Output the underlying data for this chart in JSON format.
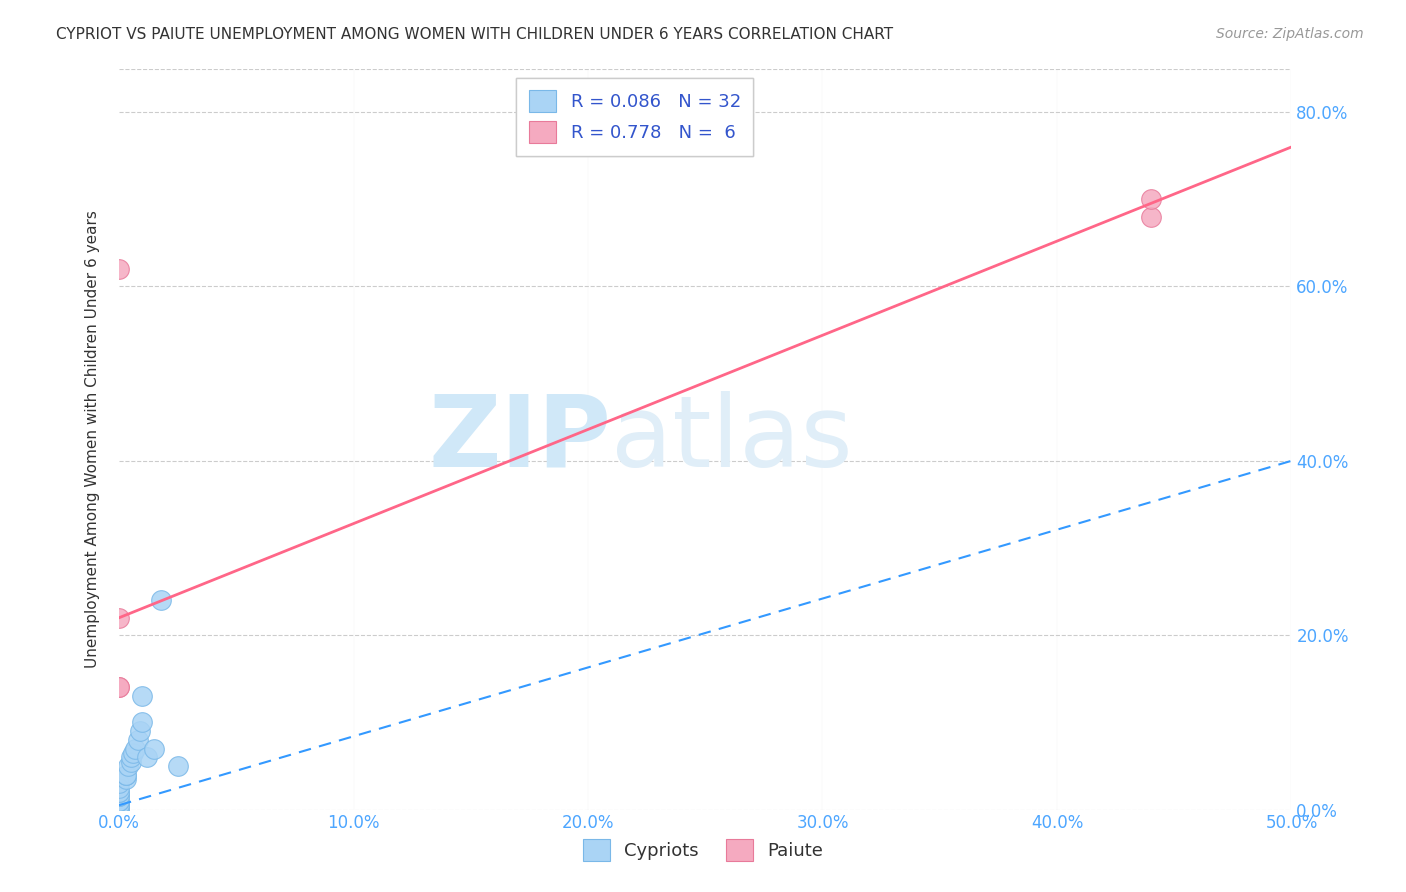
{
  "title": "CYPRIOT VS PAIUTE UNEMPLOYMENT AMONG WOMEN WITH CHILDREN UNDER 6 YEARS CORRELATION CHART",
  "source": "Source: ZipAtlas.com",
  "tick_color": "#4da6ff",
  "ylabel": "Unemployment Among Women with Children Under 6 years",
  "xlim": [
    0.0,
    0.5
  ],
  "ylim": [
    0.0,
    0.85
  ],
  "xticks": [
    0.0,
    0.1,
    0.2,
    0.3,
    0.4,
    0.5
  ],
  "yticks": [
    0.0,
    0.2,
    0.4,
    0.6,
    0.8
  ],
  "ytick_labels_right": [
    "0.0%",
    "20.0%",
    "40.0%",
    "60.0%",
    "80.0%"
  ],
  "xtick_labels": [
    "0.0%",
    "10.0%",
    "20.0%",
    "30.0%",
    "40.0%",
    "50.0%"
  ],
  "cypriot_color": "#aad4f5",
  "cypriot_edge": "#7ab8e8",
  "paiute_color": "#f5aac0",
  "paiute_edge": "#e87a9a",
  "cypriot_R": 0.086,
  "cypriot_N": 32,
  "paiute_R": 0.778,
  "paiute_N": 6,
  "cypriot_line_color": "#3399ff",
  "paiute_line_color": "#ff6688",
  "watermark_zip": "ZIP",
  "watermark_atlas": "atlas",
  "watermark_color": "#d0e8f8",
  "legend_color": "#3355cc",
  "cypriot_points_x": [
    0.0,
    0.0,
    0.0,
    0.0,
    0.0,
    0.0,
    0.0,
    0.0,
    0.0,
    0.0,
    0.0,
    0.0,
    0.0,
    0.0,
    0.0,
    0.0,
    0.003,
    0.003,
    0.003,
    0.004,
    0.005,
    0.005,
    0.006,
    0.007,
    0.008,
    0.009,
    0.01,
    0.01,
    0.012,
    0.015,
    0.018,
    0.025
  ],
  "cypriot_points_y": [
    0.0,
    0.0,
    0.0,
    0.0,
    0.0,
    0.005,
    0.005,
    0.005,
    0.01,
    0.01,
    0.015,
    0.015,
    0.02,
    0.02,
    0.025,
    0.03,
    0.035,
    0.04,
    0.04,
    0.05,
    0.055,
    0.06,
    0.065,
    0.07,
    0.08,
    0.09,
    0.1,
    0.13,
    0.06,
    0.07,
    0.24,
    0.05
  ],
  "paiute_points_x": [
    0.0,
    0.0,
    0.0,
    0.0,
    0.44,
    0.44
  ],
  "paiute_points_y": [
    0.22,
    0.14,
    0.62,
    0.14,
    0.68,
    0.7
  ],
  "cypriot_line_x0": 0.0,
  "cypriot_line_y0": 0.005,
  "cypriot_line_x1": 0.5,
  "cypriot_line_y1": 0.4,
  "paiute_line_x0": 0.0,
  "paiute_line_y0": 0.22,
  "paiute_line_x1": 0.5,
  "paiute_line_y1": 0.76
}
